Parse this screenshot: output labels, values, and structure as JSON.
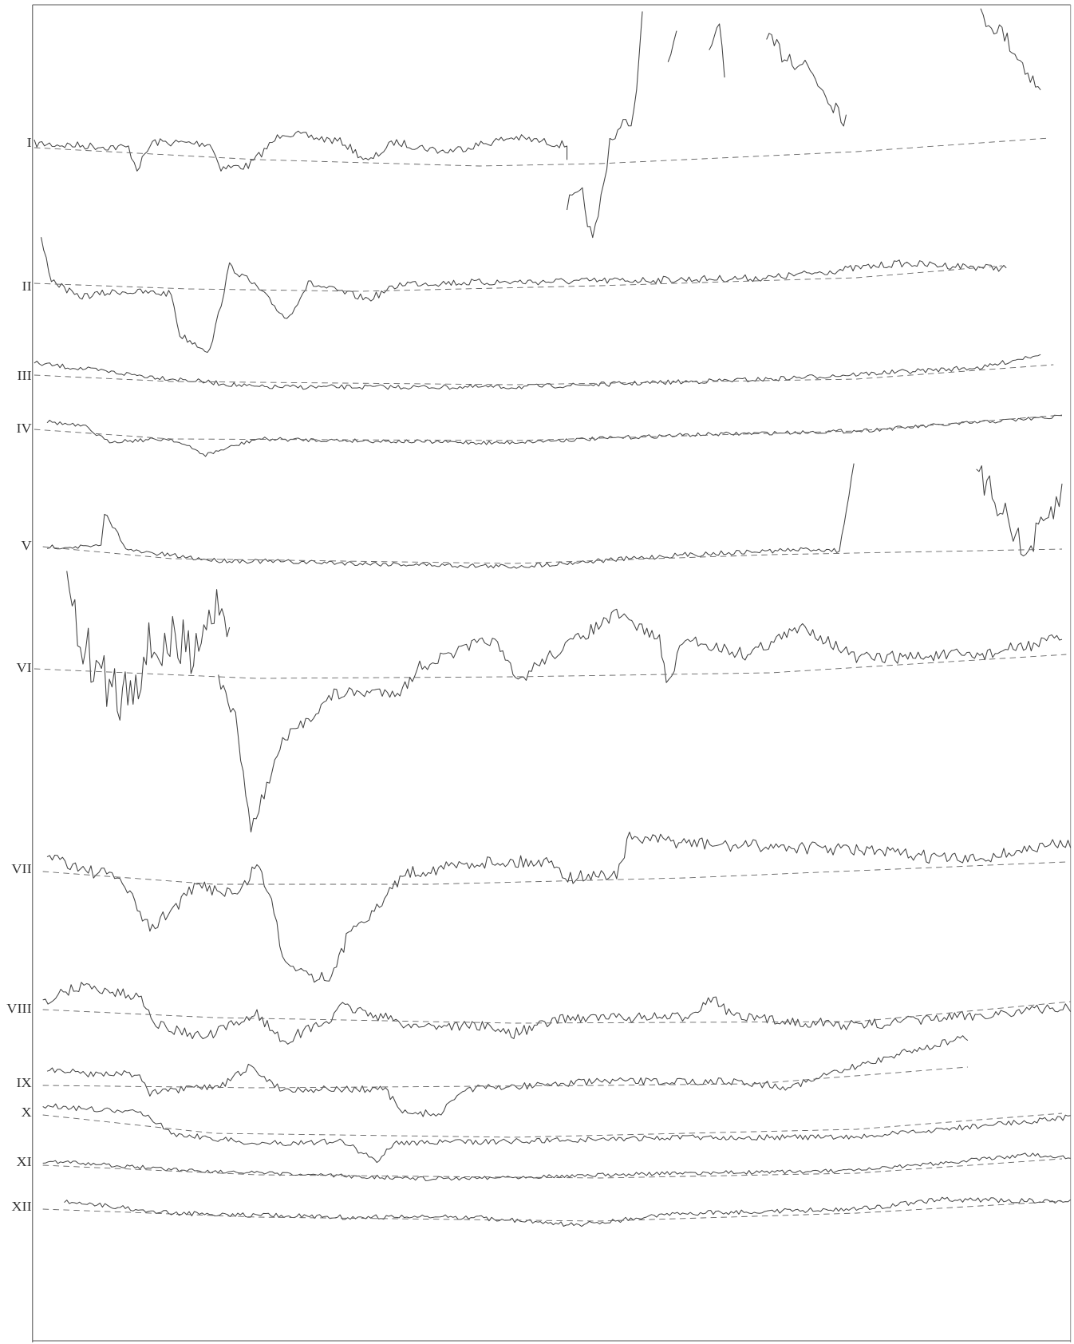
{
  "figure": {
    "labels": [
      "I",
      "II",
      "III",
      "IV",
      "V",
      "VI",
      "VII",
      "VIII",
      "IX",
      "X",
      "XI",
      "XII"
    ]
  }
}
